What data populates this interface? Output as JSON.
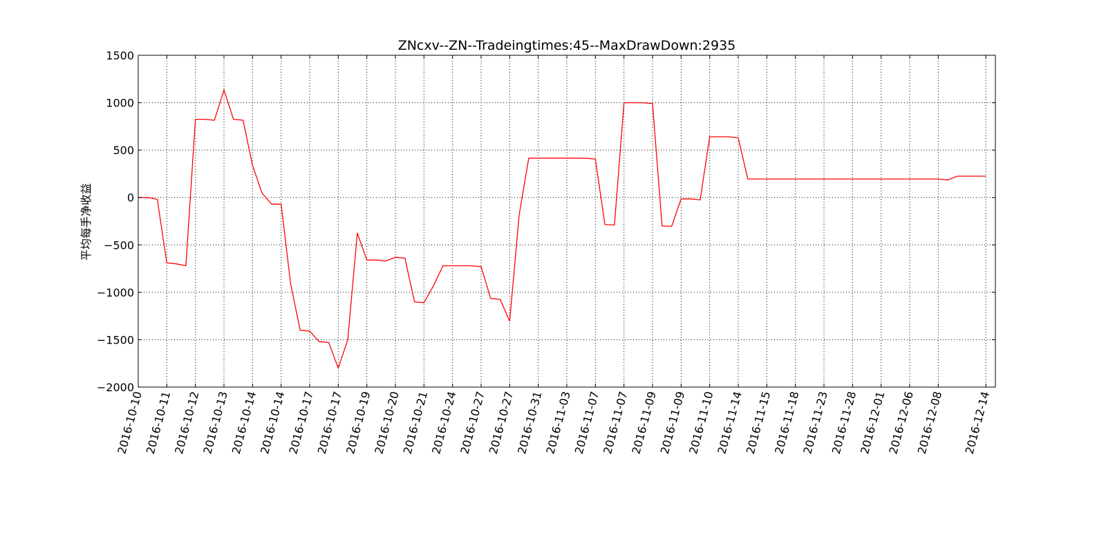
{
  "chart_data": {
    "type": "line",
    "title": "ZNcxv--ZN--Tradeingtimes:45--MaxDrawDown:2935",
    "xlabel": "",
    "ylabel": "平均每手净收益",
    "ylim": [
      -2000,
      1500
    ],
    "yticks": [
      1500,
      1000,
      500,
      0,
      -500,
      -1000,
      -1500,
      -2000
    ],
    "ytick_labels": [
      "1500",
      "1000",
      "500",
      "0",
      "−500",
      "−1000",
      "−1500",
      "−2000"
    ],
    "xlim": [
      0,
      90
    ],
    "xticks": [
      0,
      3,
      6,
      9,
      12,
      15,
      18,
      21,
      24,
      27,
      30,
      33,
      36,
      39,
      42,
      45,
      48,
      51,
      54,
      57,
      60,
      63,
      66,
      69,
      72,
      75,
      78,
      81,
      84,
      89
    ],
    "xtick_labels": [
      "2016-10-10",
      "2016-10-11",
      "2016-10-12",
      "2016-10-13",
      "2016-10-14",
      "2016-10-14",
      "2016-10-17",
      "2016-10-17",
      "2016-10-19",
      "2016-10-20",
      "2016-10-21",
      "2016-10-24",
      "2016-10-27",
      "2016-10-27",
      "2016-10-31",
      "2016-11-03",
      "2016-11-07",
      "2016-11-07",
      "2016-11-09",
      "2016-11-09",
      "2016-11-10",
      "2016-11-14",
      "2016-11-15",
      "2016-11-18",
      "2016-11-23",
      "2016-11-28",
      "2016-12-01",
      "2016-12-06",
      "2016-12-08",
      "2016-12-14"
    ],
    "grid": true,
    "line_color": "#ff0000",
    "series": [
      {
        "x": [
          0,
          1,
          2,
          3,
          4,
          5,
          6,
          7,
          8,
          9,
          10,
          11,
          12,
          13,
          14,
          15,
          16,
          17,
          18,
          19,
          20,
          21,
          22,
          23,
          24,
          25,
          26,
          27,
          28,
          29,
          30,
          31,
          32,
          33,
          34,
          35,
          36,
          37,
          38,
          39,
          40,
          41,
          42,
          43,
          44,
          45,
          46,
          47,
          48,
          49,
          50,
          51,
          52,
          53,
          54,
          55,
          56,
          57,
          58,
          59,
          60,
          61,
          62,
          63,
          64,
          84,
          85,
          86,
          89
        ],
        "values": [
          0,
          0,
          -20,
          -690,
          -700,
          -720,
          825,
          825,
          815,
          1135,
          825,
          815,
          340,
          45,
          -70,
          -70,
          -910,
          -1400,
          -1410,
          -1520,
          -1530,
          -1800,
          -1500,
          -375,
          -660,
          -660,
          -670,
          -630,
          -640,
          -1100,
          -1110,
          -930,
          -720,
          -720,
          -720,
          -720,
          -730,
          -1065,
          -1075,
          -1305,
          -180,
          415,
          415,
          415,
          415,
          415,
          415,
          415,
          405,
          -285,
          -290,
          1000,
          1000,
          1000,
          990,
          -300,
          -305,
          -15,
          -15,
          -25,
          640,
          640,
          640,
          630,
          195,
          195,
          185,
          225,
          225
        ]
      }
    ]
  }
}
